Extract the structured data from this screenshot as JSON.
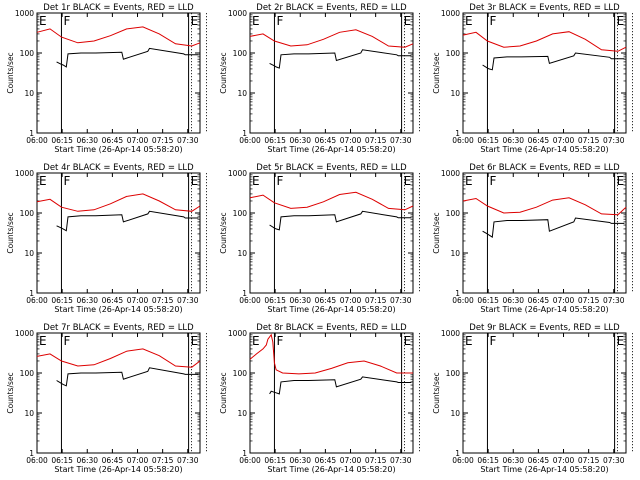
{
  "colors": {
    "events": "#000000",
    "lld": "#dd0000",
    "axis": "#000000",
    "background": "#ffffff"
  },
  "shared": {
    "xlabel": "Start Time (26-Apr-14 05:58:20)",
    "ylabel": "Counts/sec",
    "xticks": [
      "06:00",
      "06:15",
      "06:30",
      "06:45",
      "07:00",
      "07:15",
      "07:30"
    ],
    "yticks": [
      "1",
      "10",
      "100",
      "1000"
    ],
    "markers": [
      {
        "label": "E",
        "x": 0.0
      },
      {
        "label": "F",
        "x": 15.0
      },
      {
        "label": "E",
        "x": 93.0
      }
    ]
  },
  "chart_data": [
    {
      "type": "line",
      "title": "Det 1r BLACK = Events, RED = LLD",
      "xlabel": "Start Time (26-Apr-14 05:58:20)",
      "ylabel": "Counts/sec",
      "xlim": [
        0,
        100
      ],
      "ylim": [
        1,
        1000
      ],
      "yscale": "log",
      "series": [
        {
          "name": "RED = LLD",
          "x": [
            0,
            8,
            15,
            25,
            35,
            45,
            55,
            65,
            75,
            85,
            95,
            100
          ],
          "y": [
            330,
            400,
            250,
            180,
            200,
            270,
            400,
            450,
            300,
            170,
            150,
            180
          ]
        },
        {
          "name": "BLACK = Events",
          "x": [
            12,
            15,
            16,
            18,
            19,
            27,
            28,
            35,
            36,
            52,
            53,
            68,
            69,
            90,
            91,
            99
          ],
          "y": [
            60,
            52,
            50,
            45,
            95,
            100,
            100,
            100,
            100,
            105,
            70,
            110,
            130,
            95,
            90,
            90
          ]
        }
      ]
    },
    {
      "type": "line",
      "title": "Det 2r BLACK = Events, RED = LLD",
      "xlabel": "Start Time (26-Apr-14 05:58:20)",
      "ylabel": "Counts/sec",
      "xlim": [
        0,
        100
      ],
      "ylim": [
        1,
        1000
      ],
      "yscale": "log",
      "series": [
        {
          "name": "RED = LLD",
          "x": [
            0,
            8,
            15,
            25,
            35,
            45,
            55,
            65,
            75,
            85,
            95,
            100
          ],
          "y": [
            260,
            300,
            200,
            150,
            160,
            220,
            330,
            380,
            260,
            150,
            140,
            170
          ]
        },
        {
          "name": "BLACK = Events",
          "x": [
            12,
            15,
            16,
            18,
            19,
            27,
            28,
            35,
            36,
            52,
            53,
            68,
            69,
            90,
            91,
            99
          ],
          "y": [
            55,
            48,
            45,
            42,
            90,
            95,
            95,
            95,
            95,
            100,
            65,
            100,
            120,
            90,
            85,
            85
          ]
        }
      ]
    },
    {
      "type": "line",
      "title": "Det 3r BLACK = Events, RED = LLD",
      "xlabel": "Start Time (26-Apr-14 05:58:20)",
      "ylabel": "Counts/sec",
      "xlim": [
        0,
        100
      ],
      "ylim": [
        1,
        1000
      ],
      "yscale": "log",
      "series": [
        {
          "name": "RED = LLD",
          "x": [
            0,
            8,
            15,
            25,
            35,
            45,
            55,
            65,
            75,
            85,
            95,
            100
          ],
          "y": [
            280,
            330,
            200,
            140,
            150,
            200,
            300,
            340,
            220,
            120,
            110,
            140
          ]
        },
        {
          "name": "BLACK = Events",
          "x": [
            12,
            15,
            16,
            18,
            19,
            27,
            28,
            35,
            36,
            52,
            53,
            68,
            69,
            90,
            91,
            99
          ],
          "y": [
            50,
            42,
            40,
            38,
            75,
            80,
            80,
            80,
            80,
            82,
            55,
            85,
            100,
            78,
            72,
            72
          ]
        }
      ]
    },
    {
      "type": "line",
      "title": "Det 4r BLACK = Events, RED = LLD",
      "xlabel": "Start Time (26-Apr-14 05:58:20)",
      "ylabel": "Counts/sec",
      "xlim": [
        0,
        100
      ],
      "ylim": [
        1,
        1000
      ],
      "yscale": "log",
      "series": [
        {
          "name": "RED = LLD",
          "x": [
            0,
            8,
            15,
            25,
            35,
            45,
            55,
            65,
            75,
            85,
            95,
            100
          ],
          "y": [
            190,
            220,
            140,
            110,
            120,
            170,
            260,
            300,
            200,
            120,
            110,
            150
          ]
        },
        {
          "name": "BLACK = Events",
          "x": [
            12,
            15,
            16,
            18,
            19,
            27,
            28,
            35,
            36,
            52,
            53,
            68,
            69,
            90,
            91,
            99
          ],
          "y": [
            48,
            42,
            40,
            36,
            80,
            85,
            85,
            85,
            85,
            90,
            60,
            95,
            110,
            80,
            75,
            75
          ]
        }
      ]
    },
    {
      "type": "line",
      "title": "Det 5r BLACK = Events, RED = LLD",
      "xlabel": "Start Time (26-Apr-14 05:58:20)",
      "ylabel": "Counts/sec",
      "xlim": [
        0,
        100
      ],
      "ylim": [
        1,
        1000
      ],
      "yscale": "log",
      "series": [
        {
          "name": "RED = LLD",
          "x": [
            0,
            8,
            15,
            25,
            35,
            45,
            55,
            65,
            75,
            85,
            95,
            100
          ],
          "y": [
            240,
            280,
            180,
            130,
            140,
            190,
            290,
            330,
            220,
            130,
            120,
            150
          ]
        },
        {
          "name": "BLACK = Events",
          "x": [
            12,
            15,
            16,
            18,
            19,
            27,
            28,
            35,
            36,
            52,
            53,
            68,
            69,
            90,
            91,
            99
          ],
          "y": [
            50,
            42,
            40,
            38,
            80,
            85,
            85,
            85,
            85,
            90,
            60,
            95,
            110,
            80,
            76,
            76
          ]
        }
      ]
    },
    {
      "type": "line",
      "title": "Det 6r BLACK = Events, RED = LLD",
      "xlabel": "Start Time (26-Apr-14 05:58:20)",
      "ylabel": "Counts/sec",
      "xlim": [
        0,
        100
      ],
      "ylim": [
        1,
        1000
      ],
      "yscale": "log",
      "series": [
        {
          "name": "RED = LLD",
          "x": [
            0,
            8,
            15,
            25,
            35,
            45,
            55,
            65,
            75,
            85,
            95,
            100
          ],
          "y": [
            200,
            230,
            150,
            100,
            105,
            140,
            210,
            240,
            160,
            95,
            90,
            140
          ]
        },
        {
          "name": "BLACK = Events",
          "x": [
            12,
            15,
            16,
            18,
            19,
            27,
            28,
            35,
            36,
            52,
            53,
            68,
            69,
            90,
            91,
            99
          ],
          "y": [
            35,
            30,
            28,
            25,
            60,
            65,
            65,
            65,
            65,
            68,
            35,
            60,
            75,
            58,
            55,
            55
          ]
        }
      ]
    },
    {
      "type": "line",
      "title": "Det 7r BLACK = Events, RED = LLD",
      "xlabel": "Start Time (26-Apr-14 05:58:20)",
      "ylabel": "Counts/sec",
      "xlim": [
        0,
        100
      ],
      "ylim": [
        1,
        1000
      ],
      "yscale": "log",
      "series": [
        {
          "name": "RED = LLD",
          "x": [
            0,
            8,
            15,
            25,
            35,
            45,
            55,
            65,
            75,
            85,
            95,
            100
          ],
          "y": [
            260,
            300,
            200,
            150,
            160,
            230,
            350,
            400,
            270,
            150,
            140,
            200
          ]
        },
        {
          "name": "BLACK = Events",
          "x": [
            12,
            15,
            16,
            18,
            19,
            27,
            28,
            35,
            36,
            52,
            53,
            68,
            69,
            90,
            91,
            99
          ],
          "y": [
            65,
            55,
            52,
            48,
            95,
            100,
            100,
            100,
            100,
            105,
            70,
            110,
            135,
            95,
            92,
            92
          ]
        }
      ]
    },
    {
      "type": "line",
      "title": "Det 8r BLACK = Events, RED = LLD",
      "xlabel": "Start Time (26-Apr-14 05:58:20)",
      "ylabel": "Counts/sec",
      "xlim": [
        0,
        100
      ],
      "ylim": [
        1,
        1000
      ],
      "yscale": "log",
      "series": [
        {
          "name": "RED = LLD",
          "x": [
            0,
            4,
            8,
            10,
            11,
            12,
            13,
            14,
            15,
            16,
            20,
            30,
            40,
            50,
            60,
            70,
            80,
            90,
            100
          ],
          "y": [
            220,
            300,
            400,
            500,
            700,
            800,
            900,
            600,
            180,
            120,
            100,
            95,
            100,
            130,
            180,
            200,
            150,
            100,
            100
          ]
        },
        {
          "name": "BLACK = Events",
          "x": [
            12,
            13,
            15,
            16,
            18,
            19,
            27,
            28,
            35,
            36,
            52,
            53,
            68,
            69,
            90,
            91,
            99
          ],
          "y": [
            30,
            35,
            33,
            32,
            30,
            60,
            65,
            65,
            65,
            65,
            68,
            45,
            70,
            80,
            60,
            58,
            58
          ]
        }
      ]
    },
    {
      "type": "line",
      "title": "Det 9r BLACK = Events, RED = LLD",
      "xlabel": "Start Time (26-Apr-14 05:58:20)",
      "ylabel": "Counts/sec",
      "xlim": [
        0,
        100
      ],
      "ylim": [
        1,
        1000
      ],
      "yscale": "log",
      "series": []
    }
  ]
}
